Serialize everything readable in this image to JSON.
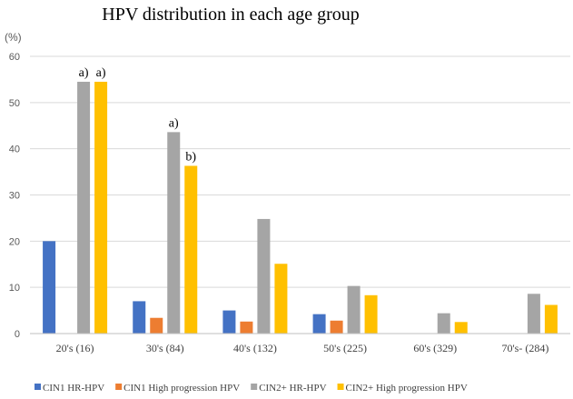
{
  "chart_data": {
    "type": "bar",
    "title": "HPV distribution in each age group",
    "ylabel": "(%)",
    "xlabel": "",
    "ylim": [
      0,
      60
    ],
    "yticks": [
      0,
      10,
      20,
      30,
      40,
      50,
      60
    ],
    "grid": true,
    "legend_position": "bottom",
    "categories": [
      "20's (16)",
      "30's (84)",
      "40's (132)",
      "50's (225)",
      "60's (329)",
      "70's- (284)"
    ],
    "series": [
      {
        "name": "CIN1 HR-HPV",
        "color": "#4472C4",
        "values": [
          20,
          7,
          5,
          4.2,
          0,
          0
        ]
      },
      {
        "name": "CIN1 High progression HPV",
        "color": "#ED7D31",
        "values": [
          0,
          3.4,
          2.6,
          2.8,
          0,
          0
        ]
      },
      {
        "name": "CIN2+ HR-HPV",
        "color": "#A5A5A5",
        "values": [
          54.5,
          43.6,
          24.8,
          10.3,
          4.4,
          8.6
        ]
      },
      {
        "name": "CIN2+ High progression HPV",
        "color": "#FFC000",
        "values": [
          54.5,
          36.3,
          15.1,
          8.3,
          2.5,
          6.2
        ]
      }
    ],
    "annotations": [
      {
        "text": "a)",
        "category": 0,
        "series": 2
      },
      {
        "text": "a)",
        "category": 0,
        "series": 3
      },
      {
        "text": "a)",
        "category": 1,
        "series": 2
      },
      {
        "text": "b)",
        "category": 1,
        "series": 3
      }
    ]
  }
}
